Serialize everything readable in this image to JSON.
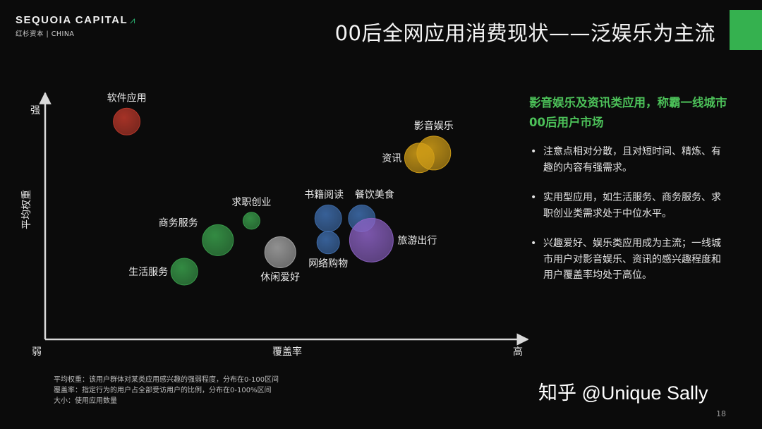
{
  "logo": {
    "name": "SEQUOIA CAPITAL",
    "sub": "红杉资本 | CHINA"
  },
  "title": "00后全网应用消费现状——泛娱乐为主流",
  "colors": {
    "background": "#0b0b0b",
    "accent": "#35b14f",
    "headline": "#4cc159"
  },
  "chart_data": {
    "type": "bubble",
    "xlabel": "覆盖率",
    "ylabel": "平均权重",
    "x_low_label": "弱",
    "x_high_label": "高",
    "y_high_label": "强",
    "xlim": [
      0,
      100
    ],
    "ylim": [
      0,
      100
    ],
    "grid": false,
    "points": [
      {
        "label": "软件应用",
        "x": 17,
        "y": 90,
        "size": 38,
        "color": "#c0392b"
      },
      {
        "label": "影音娱乐",
        "x": 81,
        "y": 77,
        "size": 48,
        "color": "#d4a017"
      },
      {
        "label": "资讯",
        "x": 78,
        "y": 75,
        "size": 42,
        "color": "#d4a017"
      },
      {
        "label": "书籍阅读",
        "x": 59,
        "y": 50,
        "size": 38,
        "color": "#3f6fb0"
      },
      {
        "label": "餐饮美食",
        "x": 66,
        "y": 50,
        "size": 38,
        "color": "#3f6fb0"
      },
      {
        "label": "旅游出行",
        "x": 68,
        "y": 41,
        "size": 62,
        "color": "#8e63c7"
      },
      {
        "label": "网络购物",
        "x": 59,
        "y": 40,
        "size": 32,
        "color": "#3f6fb0"
      },
      {
        "label": "求职创业",
        "x": 43,
        "y": 49,
        "size": 24,
        "color": "#3aa14c"
      },
      {
        "label": "商务服务",
        "x": 36,
        "y": 41,
        "size": 44,
        "color": "#3aa14c"
      },
      {
        "label": "生活服务",
        "x": 29,
        "y": 28,
        "size": 38,
        "color": "#3aa14c"
      },
      {
        "label": "休闲爱好",
        "x": 49,
        "y": 36,
        "size": 44,
        "color": "#a8a8a8"
      }
    ]
  },
  "panel": {
    "headline": "影音娱乐及资讯类应用，称霸一线城市00后用户市场",
    "bullets": [
      "注意点相对分散，且对短时间、精炼、有趣的内容有强需求。",
      "实用型应用，如生活服务、商务服务、求职创业类需求处于中位水平。",
      "兴趣爱好、娱乐类应用成为主流；一线城市用户对影音娱乐、资讯的感兴趣程度和用户覆盖率均处于高位。"
    ]
  },
  "footnotes": [
    "平均权重：该用户群体对某类应用感兴趣的强弱程度，分布在0-100区间",
    "覆盖率：指定行为的用户占全部受访用户的比例，分布在0-100%区间",
    "大小：使用应用数量"
  ],
  "watermark": "知乎 @Unique Sally",
  "page_number": "18"
}
